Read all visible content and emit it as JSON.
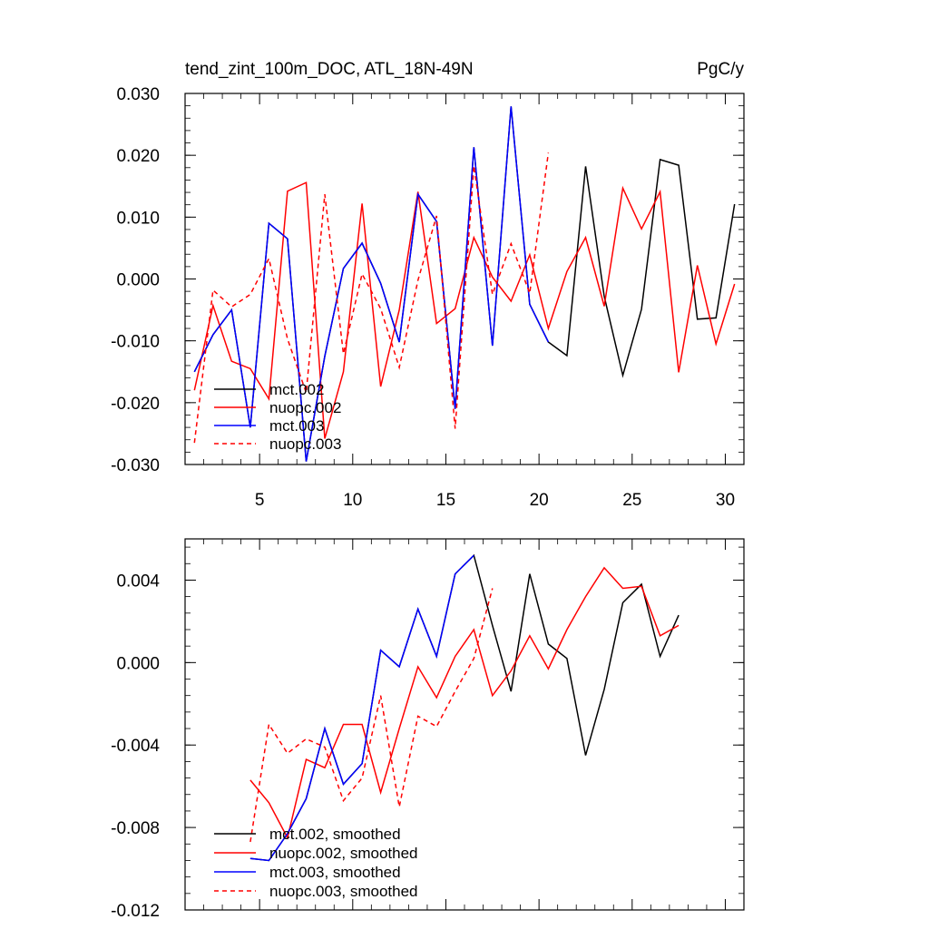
{
  "chart_data": [
    {
      "type": "line",
      "title": "tend_zint_100m_DOC, ATL_18N-49N",
      "units": "PgC/y",
      "xlabel": "",
      "ylabel": "",
      "xlim": [
        1,
        31
      ],
      "ylim": [
        -0.03,
        0.03
      ],
      "xticks": [
        5,
        10,
        15,
        20,
        25,
        30
      ],
      "xtick_labels": [
        "5",
        "10",
        "15",
        "20",
        "25",
        "30"
      ],
      "yticks": [
        -0.03,
        -0.02,
        -0.01,
        0.0,
        0.01,
        0.02,
        0.03
      ],
      "ytick_labels": [
        "-0.030",
        "-0.020",
        "-0.010",
        "0.000",
        "0.010",
        "0.020",
        "0.030"
      ],
      "legend_position": "bottom-left",
      "series": [
        {
          "name": "mct.002",
          "color": "#000000",
          "dash": "solid",
          "x": [
            1.5,
            2.5,
            3.5,
            4.5,
            5.5,
            6.5,
            7.5,
            8.5,
            9.5,
            10.5,
            11.5,
            12.5,
            13.5,
            14.5,
            15.5,
            16.5,
            17.5,
            18.5,
            19.5,
            20.5,
            21.5,
            22.5,
            23.5,
            24.5,
            25.5,
            26.5,
            27.5,
            28.5,
            29.5,
            30.5
          ],
          "y": [
            -0.015,
            -0.009,
            -0.005,
            -0.024,
            0.009,
            0.0065,
            -0.0295,
            -0.0125,
            0.0017,
            0.0058,
            -0.0007,
            -0.0102,
            0.0137,
            0.0093,
            -0.021,
            0.0213,
            -0.0108,
            0.0279,
            -0.0041,
            -0.0102,
            -0.0124,
            0.0182,
            -0.0028,
            -0.0156,
            -0.0049,
            0.0193,
            0.0184,
            -0.0065,
            -0.0063,
            0.0121
          ]
        },
        {
          "name": "nuopc.002",
          "color": "#ff0000",
          "dash": "solid",
          "x": [
            1.5,
            2.5,
            3.5,
            4.5,
            5.5,
            6.5,
            7.5,
            8.5,
            9.5,
            10.5,
            11.5,
            12.5,
            13.5,
            14.5,
            15.5,
            16.5,
            17.5,
            18.5,
            19.5,
            20.5,
            21.5,
            22.5,
            23.5,
            24.5,
            25.5,
            26.5,
            27.5,
            28.5,
            29.5,
            30.5
          ],
          "y": [
            -0.018,
            -0.0043,
            -0.0133,
            -0.0145,
            -0.0194,
            0.0142,
            0.0156,
            -0.0258,
            -0.015,
            0.0122,
            -0.0174,
            -0.005,
            0.0141,
            -0.0072,
            -0.0048,
            0.0067,
            0.0003,
            -0.0036,
            0.0039,
            -0.008,
            0.0012,
            0.0067,
            -0.0044,
            0.0147,
            0.0081,
            0.0141,
            -0.0151,
            0.0022,
            -0.0105,
            -0.0008
          ]
        },
        {
          "name": "mct.003",
          "color": "#0000ff",
          "dash": "solid",
          "x": [
            1.5,
            2.5,
            3.5,
            4.5,
            5.5,
            6.5,
            7.5,
            8.5,
            9.5,
            10.5,
            11.5,
            12.5,
            13.5,
            14.5,
            15.5,
            16.5,
            17.5,
            18.5,
            19.5,
            20.5
          ],
          "y": [
            -0.015,
            -0.009,
            -0.005,
            -0.024,
            0.009,
            0.0065,
            -0.0295,
            -0.0125,
            0.0017,
            0.0058,
            -0.0007,
            -0.0102,
            0.0137,
            0.0093,
            -0.021,
            0.0213,
            -0.0108,
            0.0279,
            -0.0041,
            -0.0102
          ]
        },
        {
          "name": "nuopc.003",
          "color": "#ff0000",
          "dash": "dashed",
          "x": [
            1.5,
            2.5,
            3.5,
            4.5,
            5.5,
            6.5,
            7.5,
            8.5,
            9.5,
            10.5,
            11.5,
            12.5,
            13.5,
            14.5,
            15.5,
            16.5,
            17.5,
            18.5,
            19.5,
            20.5
          ],
          "y": [
            -0.0265,
            -0.0018,
            -0.0045,
            -0.0025,
            0.0033,
            -0.0097,
            -0.0184,
            0.0137,
            -0.0121,
            0.0008,
            -0.0048,
            -0.0143,
            -0.0002,
            0.0102,
            -0.0242,
            0.0183,
            -0.0025,
            0.0057,
            -0.0023,
            0.0204
          ]
        }
      ]
    },
    {
      "type": "line",
      "title": "",
      "xlim": [
        1,
        31
      ],
      "ylim": [
        -0.012,
        0.006
      ],
      "xticks": [
        5,
        10,
        15,
        20,
        25,
        30
      ],
      "yticks": [
        -0.012,
        -0.008,
        -0.004,
        0.0,
        0.004
      ],
      "ytick_labels": [
        "-0.012",
        "-0.008",
        "-0.004",
        "0.000",
        "0.004"
      ],
      "legend_position": "bottom-left",
      "series": [
        {
          "name": "mct.002, smoothed",
          "color": "#000000",
          "dash": "solid",
          "x": [
            4.5,
            5.5,
            6.5,
            7.5,
            8.5,
            9.5,
            10.5,
            11.5,
            12.5,
            13.5,
            14.5,
            15.5,
            16.5,
            17.5,
            18.5,
            19.5,
            20.5,
            21.5,
            22.5,
            23.5,
            24.5,
            25.5,
            26.5,
            27.5
          ],
          "y": [
            -0.0095,
            -0.0096,
            -0.0083,
            -0.0066,
            -0.0032,
            -0.0059,
            -0.0049,
            0.0006,
            -0.0002,
            0.0026,
            0.0003,
            0.0043,
            0.0052,
            0.0018,
            -0.0014,
            0.0043,
            0.0009,
            0.0002,
            -0.0045,
            -0.0013,
            0.0029,
            0.0038,
            0.0003,
            0.0023
          ]
        },
        {
          "name": "nuopc.002, smoothed",
          "color": "#ff0000",
          "dash": "solid",
          "x": [
            4.5,
            5.5,
            6.5,
            7.5,
            8.5,
            9.5,
            10.5,
            11.5,
            12.5,
            13.5,
            14.5,
            15.5,
            16.5,
            17.5,
            18.5,
            19.5,
            20.5,
            21.5,
            22.5,
            23.5,
            24.5,
            25.5,
            26.5,
            27.5
          ],
          "y": [
            -0.0057,
            -0.0068,
            -0.0085,
            -0.0047,
            -0.0051,
            -0.003,
            -0.003,
            -0.0063,
            -0.0032,
            -0.0002,
            -0.0017,
            0.0003,
            0.0016,
            -0.0016,
            -0.0004,
            0.0013,
            -0.0003,
            0.0016,
            0.0032,
            0.0046,
            0.0036,
            0.0037,
            0.0013,
            0.0018
          ]
        },
        {
          "name": "mct.003, smoothed",
          "color": "#0000ff",
          "dash": "solid",
          "x": [
            4.5,
            5.5,
            6.5,
            7.5,
            8.5,
            9.5,
            10.5,
            11.5,
            12.5,
            13.5,
            14.5,
            15.5,
            16.5
          ],
          "y": [
            -0.0095,
            -0.0096,
            -0.0083,
            -0.0066,
            -0.0032,
            -0.0059,
            -0.0049,
            0.0006,
            -0.0002,
            0.0026,
            0.0003,
            0.0043,
            0.0052
          ]
        },
        {
          "name": "nuopc.003, smoothed",
          "color": "#ff0000",
          "dash": "dashed",
          "x": [
            4.5,
            5.5,
            6.5,
            7.5,
            8.5,
            9.5,
            10.5,
            11.5,
            12.5,
            13.5,
            14.5,
            15.5,
            16.5,
            17.5
          ],
          "y": [
            -0.0087,
            -0.003,
            -0.0044,
            -0.0037,
            -0.0041,
            -0.0067,
            -0.0056,
            -0.0016,
            -0.007,
            -0.0026,
            -0.0031,
            -0.0014,
            0.0002,
            0.0036
          ]
        }
      ]
    }
  ]
}
